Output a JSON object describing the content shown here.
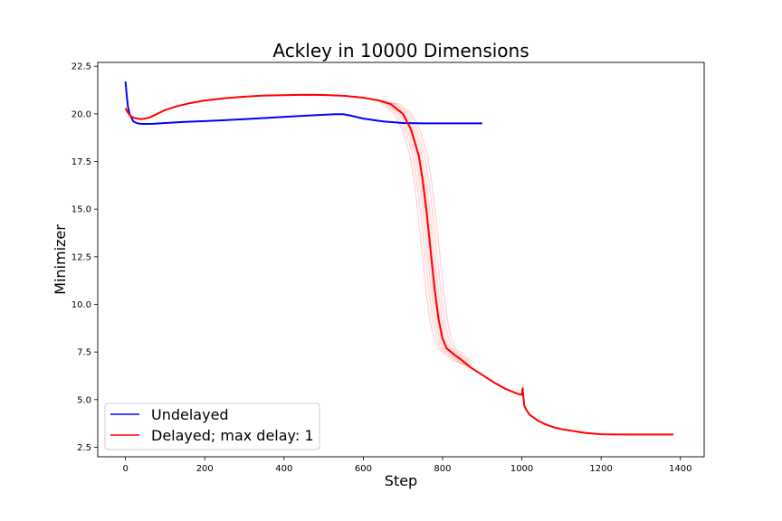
{
  "chart_data": {
    "type": "line",
    "title": "Ackley in 10000 Dimensions",
    "xlabel": "Step",
    "ylabel": "Minimizer",
    "xlim": [
      -70,
      1460
    ],
    "ylim": [
      2.0,
      22.7
    ],
    "xticks": [
      0,
      200,
      400,
      600,
      800,
      1000,
      1200,
      1400
    ],
    "yticks": [
      2.5,
      5.0,
      7.5,
      10.0,
      12.5,
      15.0,
      17.5,
      20.0,
      22.5
    ],
    "xtick_labels": [
      "0",
      "200",
      "400",
      "600",
      "800",
      "1000",
      "1200",
      "1400"
    ],
    "ytick_labels": [
      "2.5",
      "5.0",
      "7.5",
      "10.0",
      "12.5",
      "15.0",
      "17.5",
      "20.0",
      "22.5"
    ],
    "grid": false,
    "legend_position": "lower-left",
    "series": [
      {
        "name": "Undelayed",
        "color": "#0000ff",
        "x": [
          0,
          3,
          6,
          10,
          15,
          20,
          25,
          30,
          40,
          50,
          70,
          100,
          150,
          200,
          250,
          300,
          350,
          400,
          450,
          500,
          530,
          550,
          570,
          600,
          650,
          700,
          750,
          800,
          850,
          900
        ],
        "y": [
          21.7,
          21.0,
          20.4,
          20.0,
          19.8,
          19.6,
          19.55,
          19.5,
          19.48,
          19.47,
          19.48,
          19.52,
          19.58,
          19.62,
          19.67,
          19.72,
          19.78,
          19.84,
          19.9,
          19.95,
          19.98,
          19.98,
          19.9,
          19.75,
          19.6,
          19.52,
          19.5,
          19.5,
          19.5,
          19.5
        ]
      },
      {
        "name": "Delayed; max delay: 1",
        "color": "#ff0000",
        "x": [
          0,
          5,
          10,
          15,
          20,
          30,
          40,
          60,
          80,
          100,
          130,
          160,
          200,
          250,
          300,
          350,
          400,
          450,
          500,
          550,
          600,
          640,
          670,
          700,
          720,
          740,
          750,
          760,
          770,
          780,
          790,
          800,
          810,
          830,
          850,
          870,
          900,
          930,
          960,
          990,
          1000,
          1002,
          1004,
          1006,
          1010,
          1020,
          1040,
          1060,
          1080,
          1100,
          1130,
          1160,
          1200,
          1250,
          1300,
          1350,
          1382
        ],
        "y": [
          20.3,
          20.1,
          19.95,
          19.85,
          19.8,
          19.75,
          19.72,
          19.8,
          20.0,
          20.2,
          20.4,
          20.55,
          20.7,
          20.82,
          20.9,
          20.96,
          20.98,
          21.0,
          20.99,
          20.95,
          20.85,
          20.7,
          20.5,
          20.0,
          19.2,
          17.8,
          16.5,
          14.8,
          12.8,
          10.8,
          9.2,
          8.2,
          7.7,
          7.35,
          7.05,
          6.7,
          6.3,
          5.9,
          5.55,
          5.3,
          5.25,
          5.6,
          5.1,
          4.7,
          4.5,
          4.2,
          3.9,
          3.7,
          3.55,
          3.45,
          3.35,
          3.25,
          3.18,
          3.17,
          3.17,
          3.17,
          3.17
        ]
      }
    ]
  }
}
